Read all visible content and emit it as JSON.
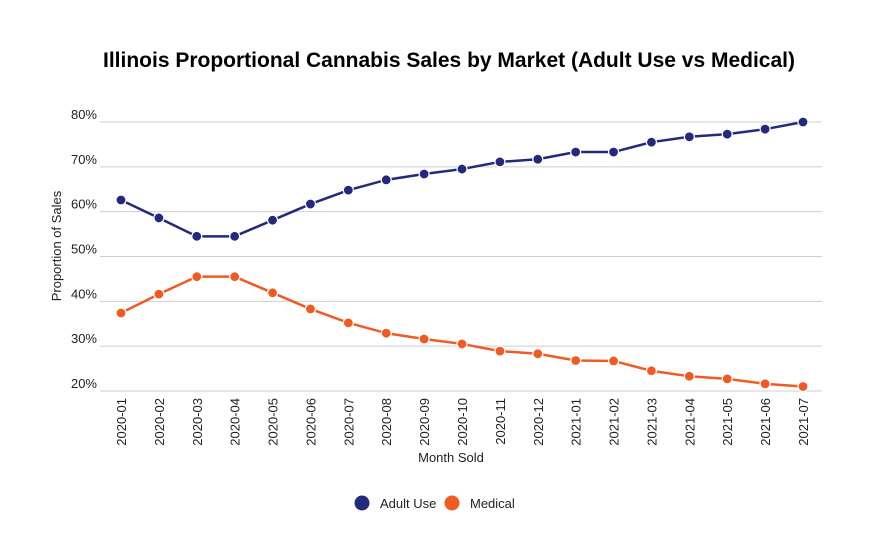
{
  "chart_data": {
    "type": "line",
    "title": "Illinois Proportional Cannabis Sales by Market (Adult Use vs Medical)",
    "xlabel": "Month Sold",
    "ylabel": "Proportion of Sales",
    "ylim": [
      20,
      80
    ],
    "yticks": [
      "20%",
      "30%",
      "40%",
      "50%",
      "60%",
      "70%",
      "80%"
    ],
    "grid": true,
    "legend": "bottom",
    "categories": [
      "2020-01",
      "2020-02",
      "2020-03",
      "2020-04",
      "2020-05",
      "2020-06",
      "2020-07",
      "2020-08",
      "2020-09",
      "2020-10",
      "2020-11",
      "2020-12",
      "2021-01",
      "2021-02",
      "2021-03",
      "2021-04",
      "2021-05",
      "2021-06",
      "2021-07"
    ],
    "series": [
      {
        "name": "Adult Use",
        "color": "#232a7d",
        "values": [
          62.6,
          58.6,
          54.5,
          54.5,
          58.1,
          61.7,
          64.8,
          67.1,
          68.4,
          69.5,
          71.1,
          71.7,
          73.3,
          73.3,
          75.5,
          76.7,
          77.3,
          78.4,
          80.0
        ]
      },
      {
        "name": "Medical",
        "color": "#f05a24",
        "values": [
          37.4,
          41.6,
          45.5,
          45.5,
          41.9,
          38.3,
          35.2,
          32.9,
          31.6,
          30.5,
          28.9,
          28.3,
          26.8,
          26.7,
          24.5,
          23.3,
          22.7,
          21.6,
          21.0
        ]
      }
    ]
  }
}
